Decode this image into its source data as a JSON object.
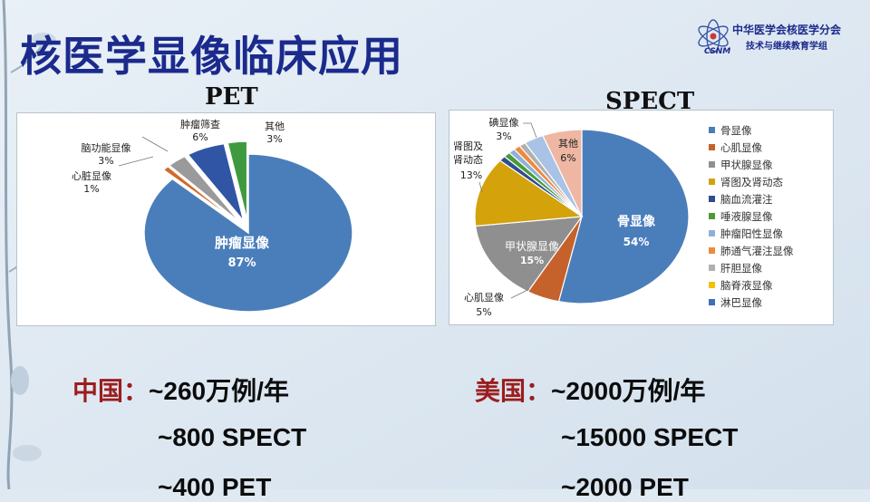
{
  "slide": {
    "title": "核医学显像临床应用",
    "org_line1": "中华医学会核医学分会",
    "org_line2": "技术与继续教育学组",
    "logo_text": "CSNM"
  },
  "chart_data": [
    {
      "type": "pie",
      "title": "PET",
      "slices": [
        {
          "label": "肿瘤显像",
          "value": 87,
          "display": "87%",
          "color": "#4a7ebb"
        },
        {
          "label": "心脏显像",
          "value": 1,
          "display": "1%",
          "color": "#d06a2c"
        },
        {
          "label": "脑功能显像",
          "value": 3,
          "display": "3%",
          "color": "#9a9a9a"
        },
        {
          "label": "肿瘤筛查",
          "value": 6,
          "display": "6%",
          "color": "#2f55a4"
        },
        {
          "label": "其他",
          "value": 3,
          "display": "3%",
          "color": "#3f9a3f"
        }
      ]
    },
    {
      "type": "pie",
      "title": "SPECT",
      "legend_position": "right",
      "slices": [
        {
          "label": "骨显像",
          "value": 54,
          "display": "54%",
          "color": "#4a7ebb"
        },
        {
          "label": "心肌显像",
          "value": 5,
          "display": "5%",
          "color": "#c5622b"
        },
        {
          "label": "甲状腺显像",
          "value": 15,
          "display": "15%",
          "color": "#8f8f8f"
        },
        {
          "label": "肾图及肾动态",
          "value": 13,
          "display": "13%",
          "color": "#d4a20a"
        },
        {
          "label": "脑血流灌注",
          "value": 1,
          "color": "#2d4f8e"
        },
        {
          "label": "唾液腺显像",
          "value": 1,
          "color": "#4c9a3a"
        },
        {
          "label": "肿瘤阳性显像",
          "value": 1,
          "color": "#8fb0dc"
        },
        {
          "label": "肺通气灌注显像",
          "value": 1,
          "color": "#ee8a3a"
        },
        {
          "label": "肝胆显像",
          "value": 1,
          "color": "#b0b0b0"
        },
        {
          "label": "碘显像",
          "value": 3,
          "display": "3%",
          "color": "#a9c3e6"
        },
        {
          "label": "其他",
          "value": 6,
          "display": "6%",
          "color": "#efb7a3"
        }
      ],
      "legend": [
        "骨显像",
        "心肌显像",
        "甲状腺显像",
        "肾图及肾动态",
        "脑血流灌注",
        "唾液腺显像",
        "肿瘤阳性显像",
        "肺通气灌注显像",
        "肝胆显像",
        "脑脊液显像",
        "淋巴显像"
      ],
      "legend_colors": [
        "#4a7ebb",
        "#c5622b",
        "#8f8f8f",
        "#d4a20a",
        "#2d4f8e",
        "#4c9a3a",
        "#8fb0dc",
        "#ee8a3a",
        "#b0b0b0",
        "#f2c200",
        "#3f6fb4"
      ]
    }
  ],
  "stats": {
    "china": {
      "label": "中国：",
      "line1": "~260万例/年",
      "line2": "~800 SPECT",
      "line3": "~400 PET"
    },
    "usa": {
      "label": "美国：",
      "line1": "~2000万例/年",
      "line2": "~15000 SPECT",
      "line3": "~2000 PET"
    }
  }
}
